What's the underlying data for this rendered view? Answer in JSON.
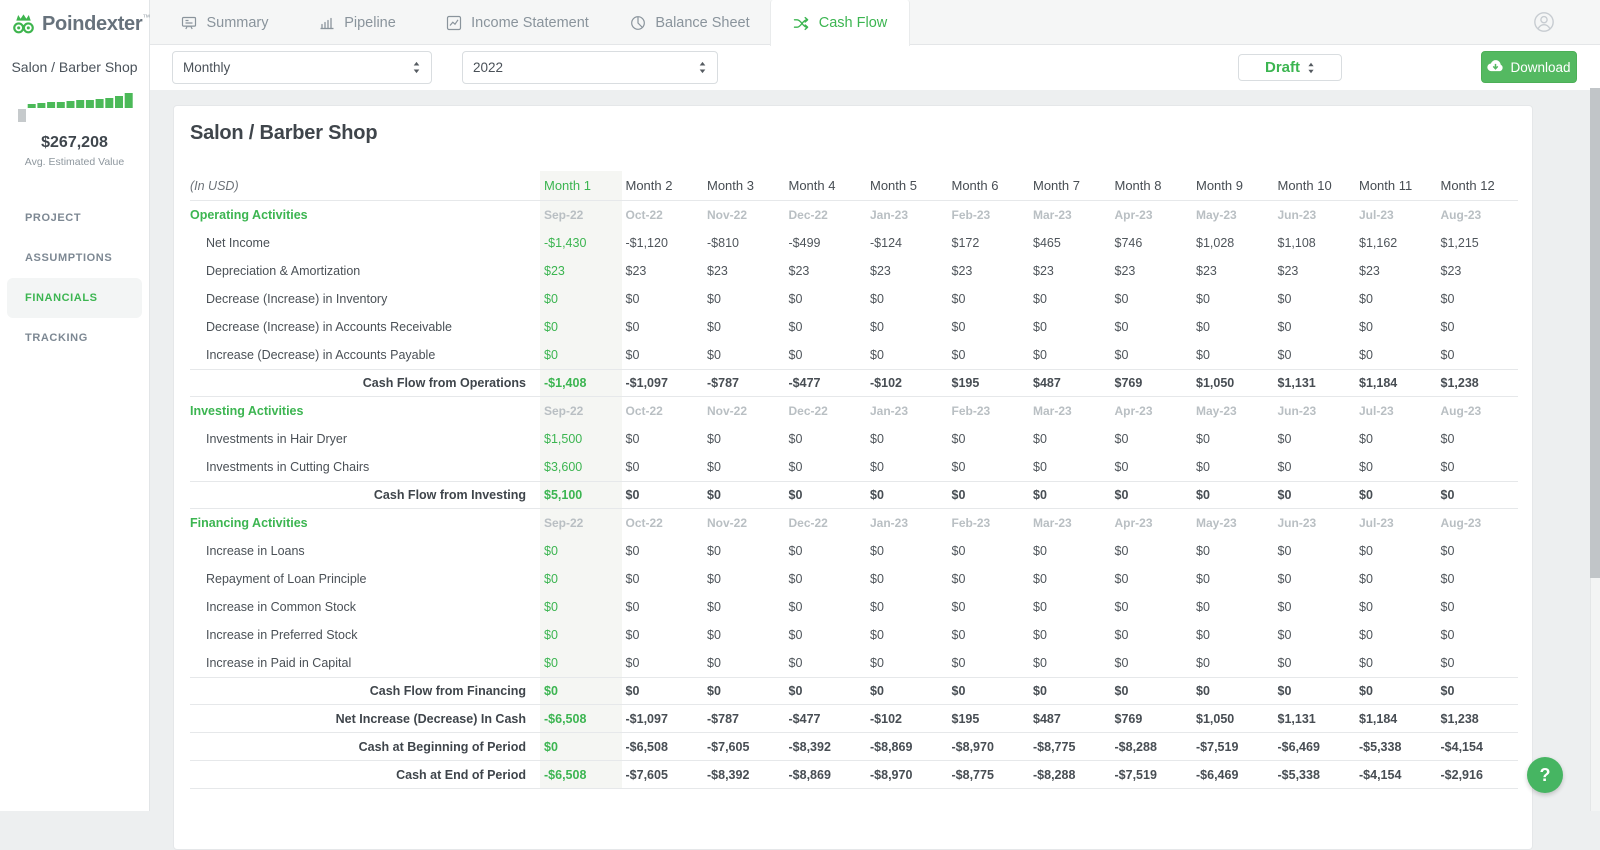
{
  "app": {
    "logo_text": "Poindexter",
    "logo_tm": "™",
    "logo_icon": "owl-logo-icon"
  },
  "header": {
    "tabs": [
      {
        "label": "Summary",
        "icon": "presentation-icon",
        "active": false
      },
      {
        "label": "Pipeline",
        "icon": "bar-chart-icon",
        "active": false
      },
      {
        "label": "Income Statement",
        "icon": "line-chart-icon",
        "active": false
      },
      {
        "label": "Balance Sheet",
        "icon": "pie-chart-icon",
        "active": false
      },
      {
        "label": "Cash Flow",
        "icon": "shuffle-icon",
        "active": true
      }
    ],
    "user_icon": "user-icon"
  },
  "sidebar": {
    "project_name": "Salon / Barber Shop",
    "avg_estimated_value": "$267,208",
    "avg_estimated_label": "Avg. Estimated Value",
    "mini_chart": {
      "type": "bar",
      "values": [
        -13,
        4,
        5,
        6,
        6,
        7,
        8,
        8,
        9,
        10,
        12,
        15
      ],
      "negative_color": "#c6cacc",
      "positive_color": "#4bb958"
    },
    "nav": [
      {
        "label": "PROJECT",
        "active": false
      },
      {
        "label": "ASSUMPTIONS",
        "active": false
      },
      {
        "label": "FINANCIALS",
        "active": true
      },
      {
        "label": "TRACKING",
        "active": false
      }
    ]
  },
  "toolbar": {
    "frequency": {
      "value": "Monthly"
    },
    "year": {
      "value": "2022"
    },
    "status": {
      "value": "Draft"
    },
    "download_label": "Download",
    "download_icon": "cloud-download-icon"
  },
  "report": {
    "title": "Salon / Barber Shop",
    "units_label": "(In USD)",
    "month_columns": [
      "Month 1",
      "Month 2",
      "Month 3",
      "Month 4",
      "Month 5",
      "Month 6",
      "Month 7",
      "Month 8",
      "Month 9",
      "Month 10",
      "Month 11",
      "Month 12"
    ],
    "period_labels": [
      "Sep-22",
      "Oct-22",
      "Nov-22",
      "Dec-22",
      "Jan-23",
      "Feb-23",
      "Mar-23",
      "Apr-23",
      "May-23",
      "Jun-23",
      "Jul-23",
      "Aug-23"
    ],
    "sections": [
      {
        "name": "Operating Activities",
        "rows": [
          {
            "label": "Net Income",
            "values": [
              "-$1,430",
              "-$1,120",
              "-$810",
              "-$499",
              "-$124",
              "$172",
              "$465",
              "$746",
              "$1,028",
              "$1,108",
              "$1,162",
              "$1,215"
            ]
          },
          {
            "label": "Depreciation & Amortization",
            "values": [
              "$23",
              "$23",
              "$23",
              "$23",
              "$23",
              "$23",
              "$23",
              "$23",
              "$23",
              "$23",
              "$23",
              "$23"
            ]
          },
          {
            "label": "Decrease (Increase) in Inventory",
            "values": [
              "$0",
              "$0",
              "$0",
              "$0",
              "$0",
              "$0",
              "$0",
              "$0",
              "$0",
              "$0",
              "$0",
              "$0"
            ]
          },
          {
            "label": "Decrease (Increase) in Accounts Receivable",
            "values": [
              "$0",
              "$0",
              "$0",
              "$0",
              "$0",
              "$0",
              "$0",
              "$0",
              "$0",
              "$0",
              "$0",
              "$0"
            ]
          },
          {
            "label": "Increase (Decrease) in Accounts Payable",
            "values": [
              "$0",
              "$0",
              "$0",
              "$0",
              "$0",
              "$0",
              "$0",
              "$0",
              "$0",
              "$0",
              "$0",
              "$0"
            ]
          }
        ],
        "subtotal": {
          "label": "Cash Flow from Operations",
          "values": [
            "-$1,408",
            "-$1,097",
            "-$787",
            "-$477",
            "-$102",
            "$195",
            "$487",
            "$769",
            "$1,050",
            "$1,131",
            "$1,184",
            "$1,238"
          ]
        }
      },
      {
        "name": "Investing Activities",
        "rows": [
          {
            "label": "Investments in Hair Dryer",
            "values": [
              "$1,500",
              "$0",
              "$0",
              "$0",
              "$0",
              "$0",
              "$0",
              "$0",
              "$0",
              "$0",
              "$0",
              "$0"
            ]
          },
          {
            "label": "Investments in Cutting Chairs",
            "values": [
              "$3,600",
              "$0",
              "$0",
              "$0",
              "$0",
              "$0",
              "$0",
              "$0",
              "$0",
              "$0",
              "$0",
              "$0"
            ]
          }
        ],
        "subtotal": {
          "label": "Cash Flow from Investing",
          "values": [
            "$5,100",
            "$0",
            "$0",
            "$0",
            "$0",
            "$0",
            "$0",
            "$0",
            "$0",
            "$0",
            "$0",
            "$0"
          ]
        }
      },
      {
        "name": "Financing Activities",
        "rows": [
          {
            "label": "Increase in Loans",
            "values": [
              "$0",
              "$0",
              "$0",
              "$0",
              "$0",
              "$0",
              "$0",
              "$0",
              "$0",
              "$0",
              "$0",
              "$0"
            ]
          },
          {
            "label": "Repayment of Loan Principle",
            "values": [
              "$0",
              "$0",
              "$0",
              "$0",
              "$0",
              "$0",
              "$0",
              "$0",
              "$0",
              "$0",
              "$0",
              "$0"
            ]
          },
          {
            "label": "Increase in Common Stock",
            "values": [
              "$0",
              "$0",
              "$0",
              "$0",
              "$0",
              "$0",
              "$0",
              "$0",
              "$0",
              "$0",
              "$0",
              "$0"
            ]
          },
          {
            "label": "Increase in Preferred Stock",
            "values": [
              "$0",
              "$0",
              "$0",
              "$0",
              "$0",
              "$0",
              "$0",
              "$0",
              "$0",
              "$0",
              "$0",
              "$0"
            ]
          },
          {
            "label": "Increase in Paid in Capital",
            "values": [
              "$0",
              "$0",
              "$0",
              "$0",
              "$0",
              "$0",
              "$0",
              "$0",
              "$0",
              "$0",
              "$0",
              "$0"
            ]
          }
        ],
        "subtotal": {
          "label": "Cash Flow from Financing",
          "values": [
            "$0",
            "$0",
            "$0",
            "$0",
            "$0",
            "$0",
            "$0",
            "$0",
            "$0",
            "$0",
            "$0",
            "$0"
          ]
        }
      }
    ],
    "totals": [
      {
        "label": "Net Increase (Decrease) In Cash",
        "values": [
          "-$6,508",
          "-$1,097",
          "-$787",
          "-$477",
          "-$102",
          "$195",
          "$487",
          "$769",
          "$1,050",
          "$1,131",
          "$1,184",
          "$1,238"
        ]
      },
      {
        "label": "Cash at Beginning of Period",
        "values": [
          "$0",
          "-$6,508",
          "-$7,605",
          "-$8,392",
          "-$8,869",
          "-$8,970",
          "-$8,775",
          "-$8,288",
          "-$7,519",
          "-$6,469",
          "-$5,338",
          "-$4,154"
        ]
      },
      {
        "label": "Cash at End of Period",
        "values": [
          "-$6,508",
          "-$7,605",
          "-$8,392",
          "-$8,869",
          "-$8,970",
          "-$8,775",
          "-$8,288",
          "-$7,519",
          "-$6,469",
          "-$5,338",
          "-$4,154",
          "-$2,916"
        ]
      }
    ]
  },
  "help_button_label": "?",
  "colors": {
    "accent_green": "#3cb551",
    "button_green": "#54b961",
    "highlight_column_bg": "#f5f6f3",
    "tab_inactive_text": "#8a949c",
    "period_label_gray": "#b9bfc3"
  }
}
